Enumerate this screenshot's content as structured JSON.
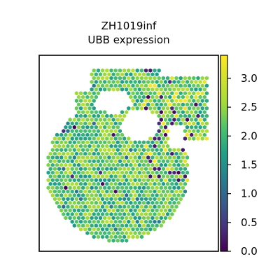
{
  "chart_data": {
    "type": "scatter",
    "title": [
      "ZH1019inf",
      "UBB expression"
    ],
    "xlabel": "",
    "ylabel": "",
    "colorbar": {
      "colormap": "viridis",
      "range": [
        0.0,
        3.4
      ],
      "ticks": [
        0.0,
        0.5,
        1.0,
        1.5,
        2.0,
        2.5,
        3.0
      ],
      "tick_labels": [
        "0.0",
        "0.5",
        "1.0",
        "1.5",
        "2.0",
        "2.5",
        "3.0"
      ]
    },
    "axes": {
      "ticks_visible": false,
      "grid": false
    },
    "marker": "hexagon",
    "value_summary": {
      "typical": 2.2,
      "min": 0.0,
      "max": 3.4
    }
  }
}
